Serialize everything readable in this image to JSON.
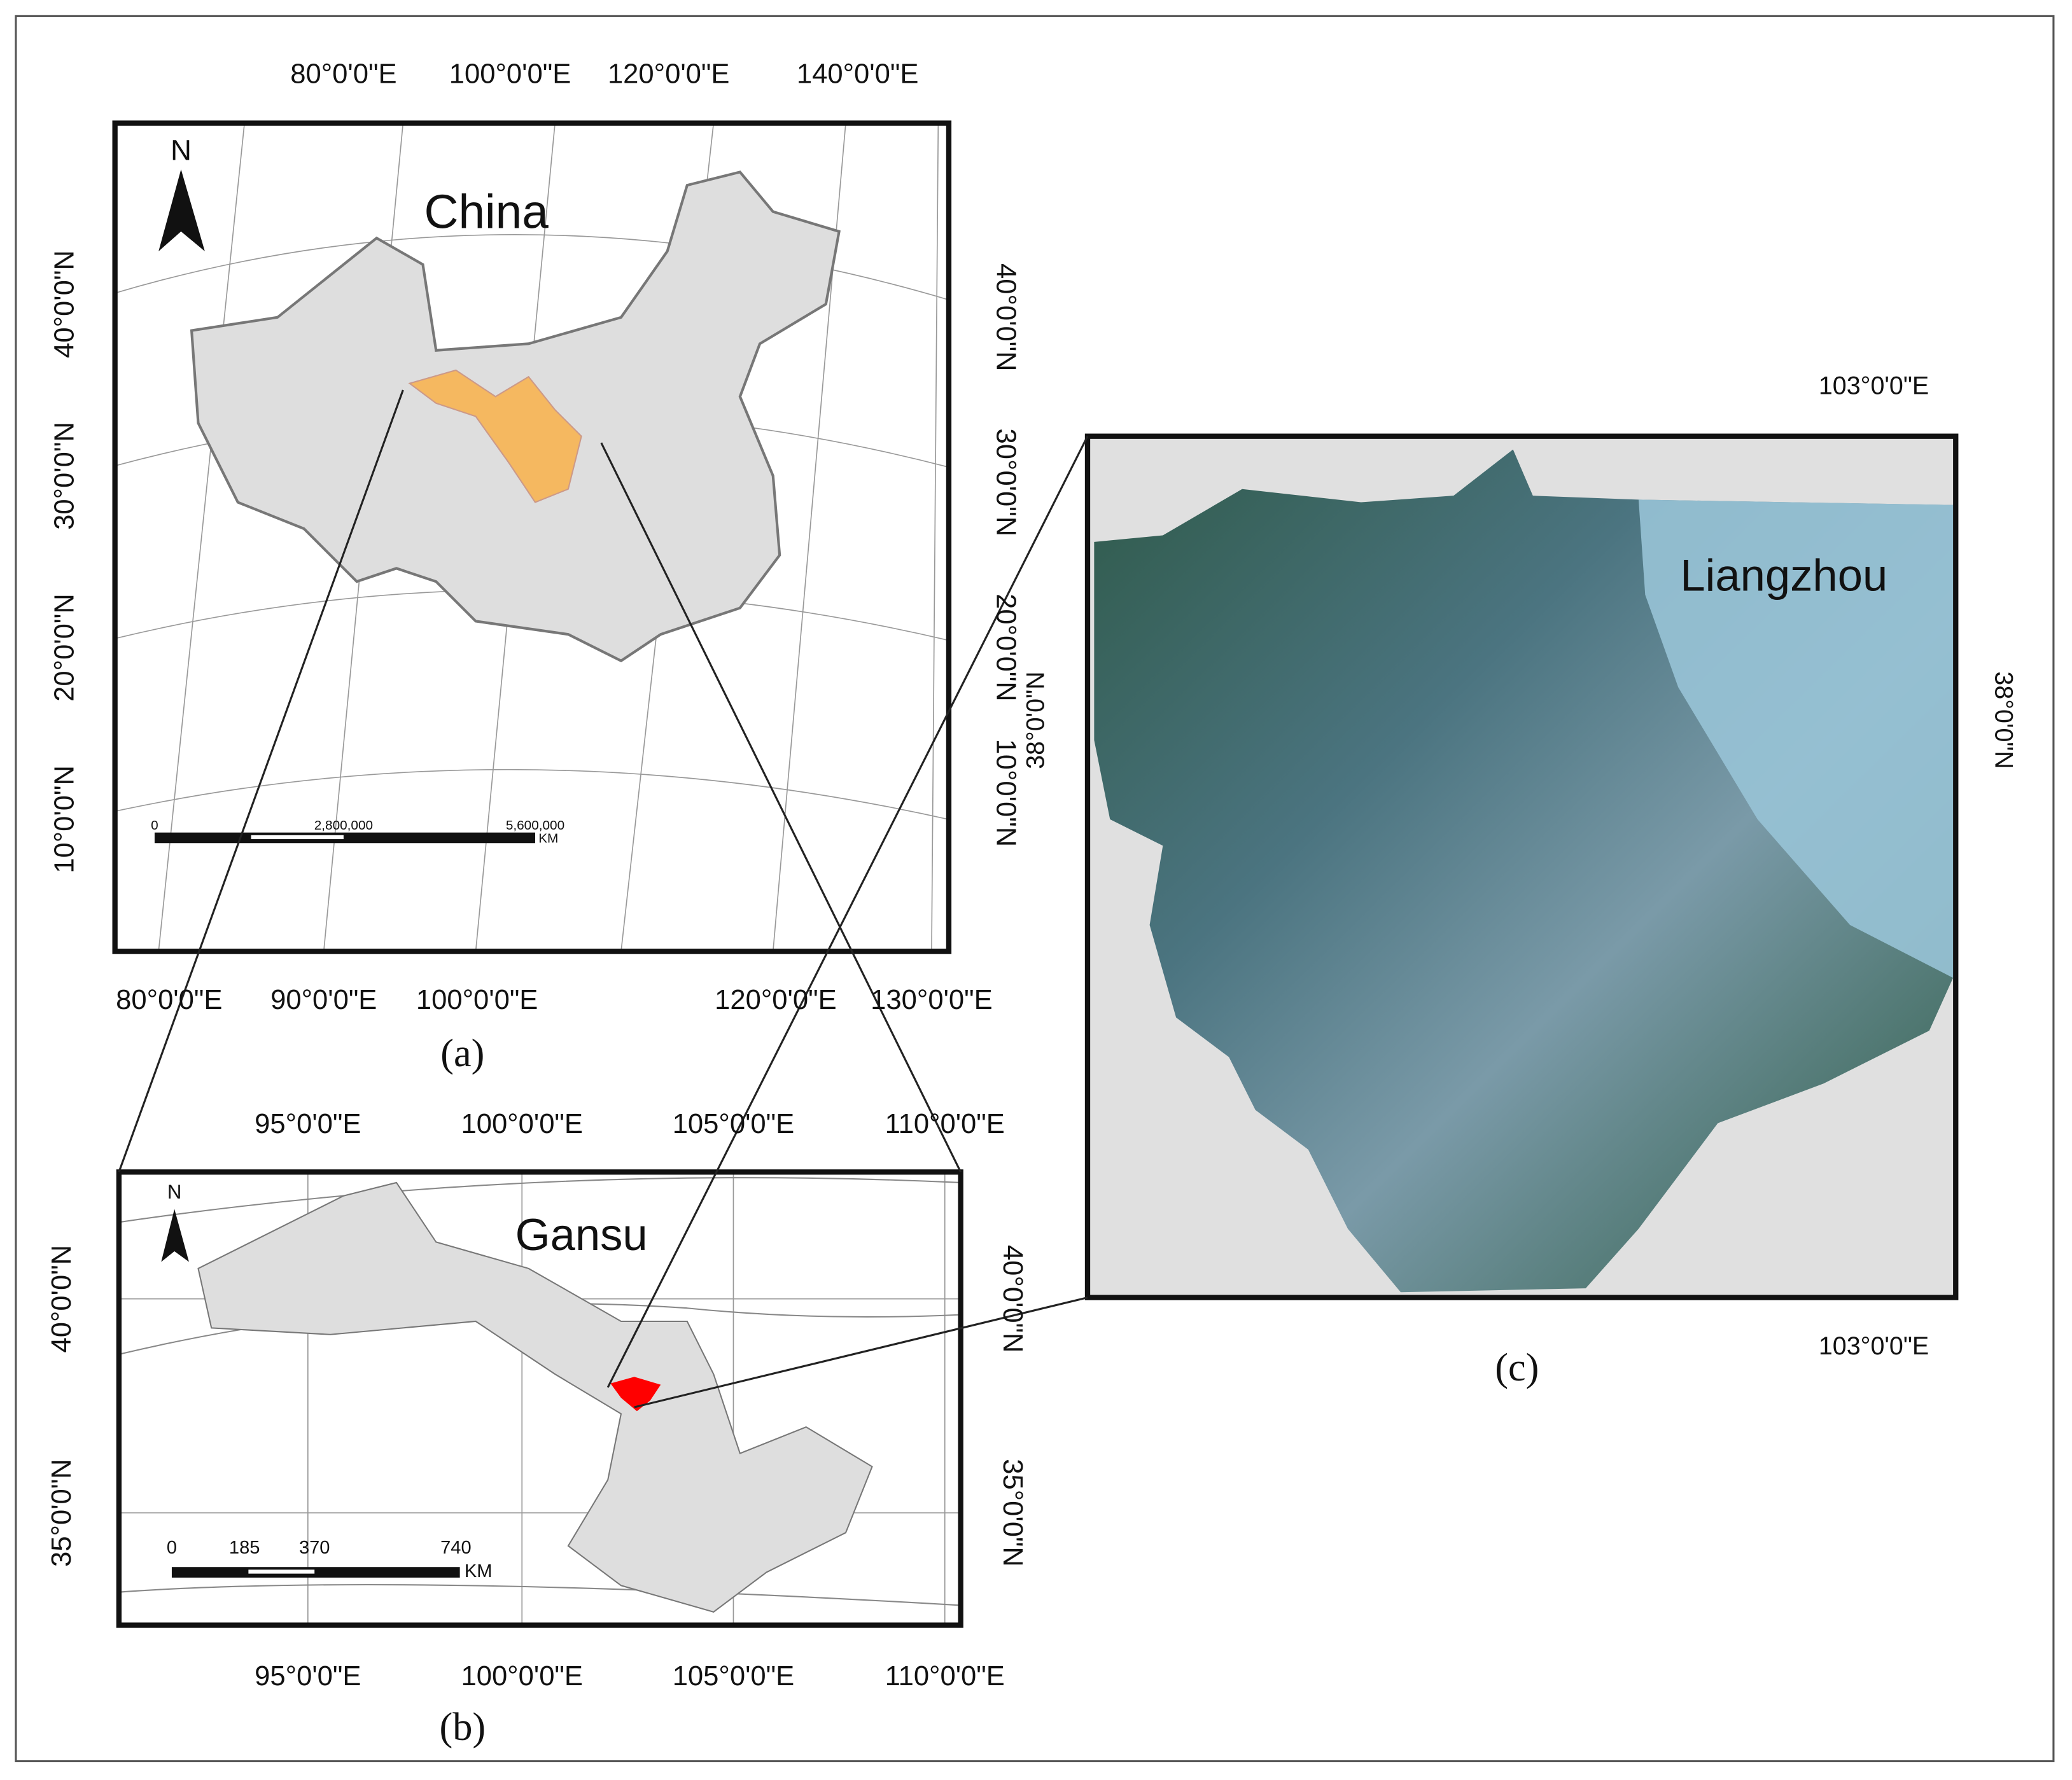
{
  "panel_a": {
    "caption": "(a)",
    "title": "China",
    "north": "N",
    "top_labels": [
      "80°0'0\"E",
      "100°0'0\"E",
      "120°0'0\"E",
      "140°0'0\"E"
    ],
    "bottom_labels": [
      "80°0'0\"E",
      "90°0'0\"E",
      "100°0'0\"E",
      "120°0'0\"E",
      "130°0'0\"E"
    ],
    "left_labels": [
      "40°0'0\"N",
      "30°0'0\"N",
      "20°0'0\"N",
      "10°0'0\"N"
    ],
    "right_labels": [
      "40°0'0\"N",
      "30°0'0\"N",
      "20°0'0\"N",
      "10°0'0\"N"
    ],
    "scale_labels": [
      "0",
      "2,800,000",
      "5,600,000"
    ],
    "scale_unit": "KM"
  },
  "panel_b": {
    "caption": "(b)",
    "title": "Gansu",
    "north": "N",
    "top_labels": [
      "95°0'0\"E",
      "100°0'0\"E",
      "105°0'0\"E",
      "110°0'0\"E"
    ],
    "bottom_labels": [
      "95°0'0\"E",
      "100°0'0\"E",
      "105°0'0\"E",
      "110°0'0\"E"
    ],
    "left_labels": [
      "40°0'0\"N",
      "35°0'0\"N"
    ],
    "right_labels": [
      "40°0'0\"N",
      "35°0'0\"N"
    ],
    "scale_labels": [
      "0",
      "185",
      "370",
      "740"
    ],
    "scale_unit": "KM"
  },
  "panel_c": {
    "caption": "(c)",
    "title": "Liangzhou",
    "top_labels": [
      "103°0'0\"E"
    ],
    "bottom_labels": [
      "103°0'0\"E"
    ],
    "left_labels": [
      "38°0'0\"N"
    ],
    "right_labels": [
      "38°0'0\"N"
    ]
  }
}
